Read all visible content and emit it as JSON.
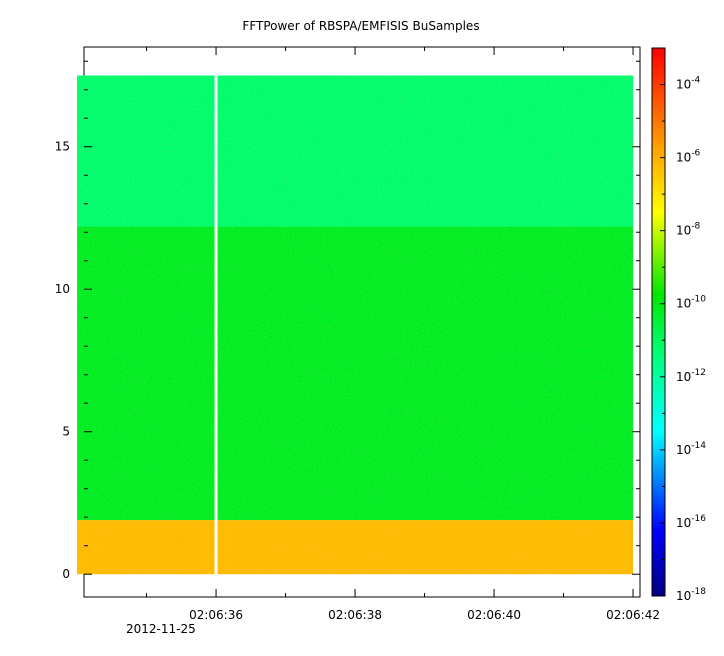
{
  "chart_data": {
    "type": "heatmap",
    "title": "FFTPower of RBSPA/EMFISIS  BuSamples",
    "x_axis": {
      "ticks": [
        {
          "t": 36,
          "label": "02:06:36"
        },
        {
          "t": 38,
          "label": "02:06:38"
        },
        {
          "t": 40,
          "label": "02:06:40"
        },
        {
          "t": 42,
          "label": "02:06:42"
        }
      ],
      "date_label": "2012-11-25",
      "range": [
        "02:06:34.1",
        "02:06:42.1"
      ]
    },
    "y_axis": {
      "ticks": [
        0,
        5,
        10,
        15
      ],
      "range": [
        -0.8,
        18.5
      ]
    },
    "colorbar": {
      "scale": "log",
      "range": [
        1e-18,
        0.001
      ],
      "tick_exponents": [
        -18,
        -16,
        -14,
        -12,
        -10,
        -8,
        -6,
        -4
      ],
      "tick_base": "10"
    },
    "data_extent": {
      "t_start": "02:06:34.0",
      "t_end": "02:06:42.0",
      "f_min": 0,
      "f_max": 17.5
    },
    "bands": [
      {
        "f_from": 0,
        "f_to": 1.9,
        "log10_power": -6.2
      },
      {
        "f_from": 1.9,
        "f_to": 12.2,
        "log10_power": -10.2
      },
      {
        "f_from": 12.2,
        "f_to": 17.5,
        "log10_power": -11.2
      }
    ],
    "gap_time": "02:06:36.0"
  }
}
